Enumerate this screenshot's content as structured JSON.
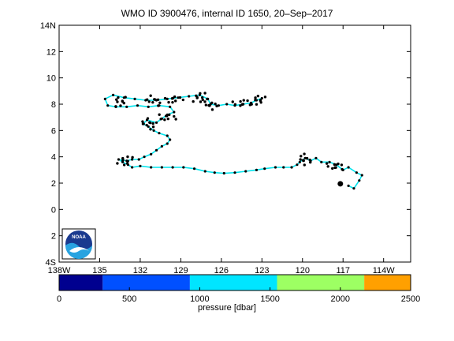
{
  "title": "WMO ID 3900476, internal ID 1650, 20–Sep–2017",
  "map": {
    "lon_range": [
      -138,
      -112
    ],
    "lat_range": [
      -4,
      14
    ],
    "x_ticks": [
      {
        "value": -138,
        "label": "138W"
      },
      {
        "value": -135,
        "label": "135"
      },
      {
        "value": -132,
        "label": "132"
      },
      {
        "value": -129,
        "label": "129"
      },
      {
        "value": -126,
        "label": "126"
      },
      {
        "value": -123,
        "label": "123"
      },
      {
        "value": -120,
        "label": "120"
      },
      {
        "value": -117,
        "label": "117"
      },
      {
        "value": -114,
        "label": "114W"
      }
    ],
    "y_ticks": [
      {
        "value": 14,
        "label": "14N"
      },
      {
        "value": 12,
        "label": "12"
      },
      {
        "value": 10,
        "label": "10"
      },
      {
        "value": 8,
        "label": "8"
      },
      {
        "value": 6,
        "label": "6"
      },
      {
        "value": 4,
        "label": "4"
      },
      {
        "value": 2,
        "label": "2"
      },
      {
        "value": 0,
        "label": "0"
      },
      {
        "value": -2,
        "label": "2"
      },
      {
        "value": -4,
        "label": "4S"
      }
    ],
    "track_color": "#00e5ee",
    "marker_color": "#000000",
    "track": [
      [
        -116.6,
        1.8
      ],
      [
        -116.2,
        1.6
      ],
      [
        -115.8,
        2.2
      ],
      [
        -115.6,
        2.6
      ],
      [
        -116.0,
        2.8
      ],
      [
        -116.6,
        3.2
      ],
      [
        -117.0,
        3.0
      ],
      [
        -117.5,
        3.4
      ],
      [
        -118.0,
        3.6
      ],
      [
        -118.6,
        3.6
      ],
      [
        -119.0,
        3.9
      ],
      [
        -119.4,
        3.7
      ],
      [
        -119.8,
        3.9
      ],
      [
        -120.2,
        3.6
      ],
      [
        -120.4,
        3.4
      ],
      [
        -120.8,
        3.2
      ],
      [
        -121.4,
        3.2
      ],
      [
        -122.0,
        3.2
      ],
      [
        -122.8,
        3.1
      ],
      [
        -123.4,
        3.0
      ],
      [
        -124.2,
        2.9
      ],
      [
        -125.0,
        2.8
      ],
      [
        -125.8,
        2.75
      ],
      [
        -126.5,
        2.8
      ],
      [
        -127.2,
        2.9
      ],
      [
        -128.0,
        3.1
      ],
      [
        -128.8,
        3.2
      ],
      [
        -129.6,
        3.2
      ],
      [
        -130.4,
        3.2
      ],
      [
        -131.2,
        3.2
      ],
      [
        -132.0,
        3.3
      ],
      [
        -132.6,
        3.2
      ],
      [
        -132.9,
        3.4
      ],
      [
        -133.3,
        3.6
      ],
      [
        -133.6,
        3.8
      ],
      [
        -133.0,
        3.7
      ],
      [
        -132.6,
        3.8
      ],
      [
        -132.1,
        3.8
      ],
      [
        -131.7,
        4.0
      ],
      [
        -131.2,
        4.2
      ],
      [
        -130.8,
        4.5
      ],
      [
        -130.4,
        4.8
      ],
      [
        -130.0,
        5.0
      ],
      [
        -129.8,
        5.3
      ],
      [
        -130.0,
        5.6
      ],
      [
        -130.6,
        5.8
      ],
      [
        -131.0,
        6.0
      ],
      [
        -131.4,
        6.3
      ],
      [
        -131.8,
        6.5
      ],
      [
        -131.5,
        6.8
      ],
      [
        -130.8,
        6.6
      ],
      [
        -130.4,
        6.9
      ],
      [
        -130.0,
        7.2
      ],
      [
        -129.5,
        7.4
      ],
      [
        -129.8,
        7.8
      ],
      [
        -130.6,
        7.9
      ],
      [
        -131.4,
        7.8
      ],
      [
        -132.2,
        7.9
      ],
      [
        -133.0,
        7.8
      ],
      [
        -133.8,
        7.8
      ],
      [
        -134.4,
        7.9
      ],
      [
        -134.6,
        8.4
      ],
      [
        -134.0,
        8.7
      ],
      [
        -133.2,
        8.5
      ],
      [
        -132.4,
        8.4
      ],
      [
        -131.6,
        8.3
      ],
      [
        -130.8,
        8.3
      ],
      [
        -130.0,
        8.4
      ],
      [
        -129.2,
        8.5
      ],
      [
        -128.4,
        8.6
      ],
      [
        -127.6,
        8.7
      ],
      [
        -127.0,
        8.4
      ],
      [
        -126.8,
        8.0
      ],
      [
        -126.2,
        7.9
      ],
      [
        -125.6,
        8.0
      ],
      [
        -125.0,
        7.9
      ],
      [
        -124.4,
        8.0
      ],
      [
        -123.8,
        8.1
      ],
      [
        -123.4,
        8.3
      ],
      [
        -123.0,
        8.45
      ]
    ],
    "dense_clusters": [
      [
        -133.5,
        8.2
      ],
      [
        -131.0,
        8.25
      ],
      [
        -129.5,
        8.35
      ],
      [
        -127.6,
        8.5
      ],
      [
        -126.8,
        8.0
      ],
      [
        -124.5,
        8.1
      ],
      [
        -123.3,
        8.3
      ],
      [
        -131.4,
        6.5
      ],
      [
        -130.0,
        7.0
      ],
      [
        -133.1,
        3.7
      ],
      [
        -119.8,
        3.8
      ],
      [
        -117.6,
        3.3
      ]
    ],
    "start_marker": [
      -117.2,
      1.95
    ]
  },
  "colorbar": {
    "label": "pressure [dbar]",
    "range": [
      0,
      2500
    ],
    "ticks": [
      {
        "value": 0,
        "label": "0"
      },
      {
        "value": 500,
        "label": "500"
      },
      {
        "value": 1000,
        "label": "1000"
      },
      {
        "value": 1500,
        "label": "1500"
      },
      {
        "value": 2000,
        "label": "2000"
      },
      {
        "value": 2500,
        "label": "2500"
      }
    ],
    "bands": [
      {
        "from": 0,
        "to": 310,
        "color": "#00008f"
      },
      {
        "from": 310,
        "to": 930,
        "color": "#0050ff"
      },
      {
        "from": 930,
        "to": 1550,
        "color": "#00e5ff"
      },
      {
        "from": 1550,
        "to": 2170,
        "color": "#9dff63"
      },
      {
        "from": 2170,
        "to": 2500,
        "color": "#ffa000"
      }
    ]
  },
  "logo": {
    "text": "NOAA",
    "colors": {
      "blue_dark": "#1a3a8f",
      "blue_light": "#29a3e0",
      "white": "#ffffff"
    }
  }
}
